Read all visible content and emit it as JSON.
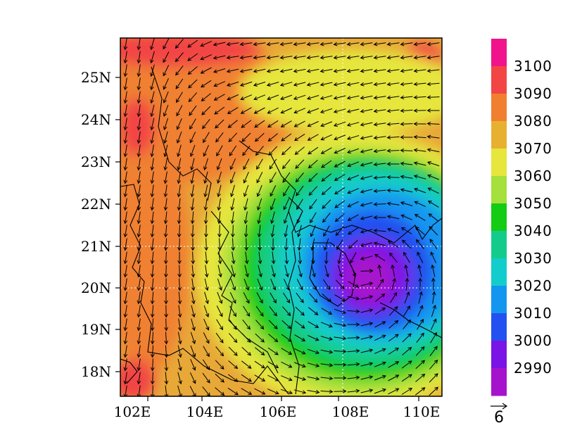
{
  "map": {
    "lon_ticks": [
      "102E",
      "104E",
      "106E",
      "108E",
      "110E"
    ],
    "lat_ticks": [
      "25N",
      "24N",
      "23N",
      "22N",
      "21N",
      "20N",
      "19N",
      "18N"
    ],
    "lon_range": [
      101.9,
      110.9
    ],
    "lat_range": [
      17.4,
      25.9
    ],
    "gridlines_dotted": true,
    "low_center": {
      "lon": 108.8,
      "lat": 20.4
    }
  },
  "colorbar": {
    "labels": [
      "3100",
      "3090",
      "3080",
      "3070",
      "3060",
      "3050",
      "3040",
      "3030",
      "3020",
      "3010",
      "3000",
      "2990"
    ],
    "colors": [
      "#f0138c",
      "#f24545",
      "#f08030",
      "#e8b030",
      "#e6e63c",
      "#a5e03c",
      "#13cc13",
      "#13cc8c",
      "#13cccc",
      "#1396f0",
      "#2350f0",
      "#7a13e6",
      "#a613cc"
    ]
  },
  "vector_reference": {
    "label": "6",
    "magnitude": 6
  }
}
